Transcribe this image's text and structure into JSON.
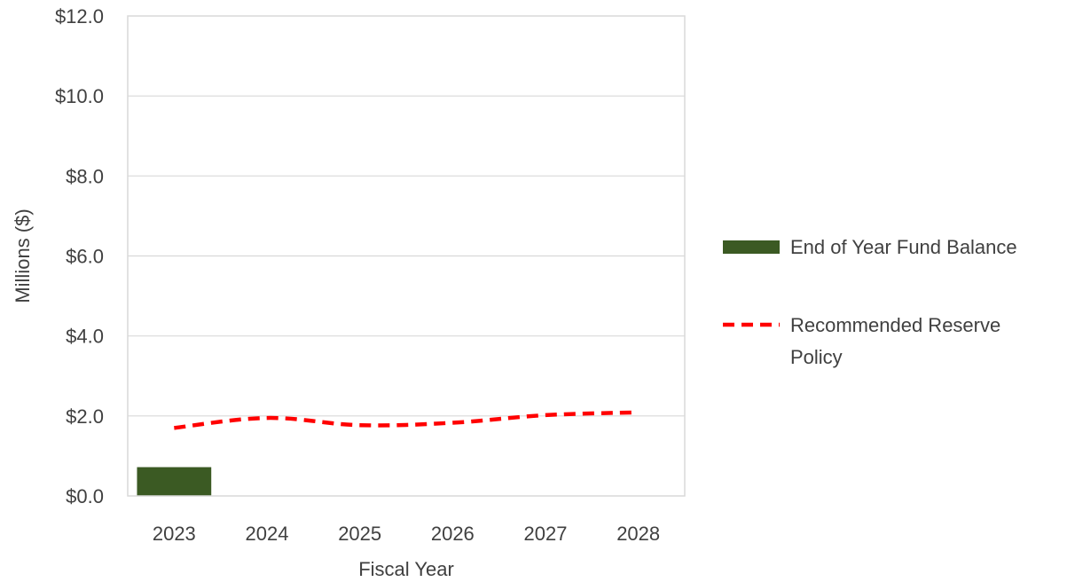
{
  "chart_data": {
    "type": "bar",
    "title": "",
    "xlabel": "Fiscal Year",
    "ylabel": "Millions ($)",
    "categories": [
      "2023",
      "2024",
      "2025",
      "2026",
      "2027",
      "2028"
    ],
    "ylim": [
      0,
      12
    ],
    "yticks": [
      0,
      2,
      4,
      6,
      8,
      10,
      12
    ],
    "ytick_labels": [
      "$0.0",
      "$2.0",
      "$4.0",
      "$6.0",
      "$8.0",
      "$10.0",
      "$12.0"
    ],
    "grid": true,
    "legend_position": "right",
    "series": [
      {
        "name": "End of Year Fund Balance",
        "type": "bar",
        "color": "#3b5a23",
        "values": [
          0.72,
          null,
          null,
          null,
          null,
          null
        ]
      },
      {
        "name": "Recommended Reserve Policy",
        "type": "line",
        "style": "dashed",
        "color": "#ff0000",
        "values": [
          1.7,
          1.95,
          1.77,
          1.83,
          2.02,
          2.09
        ]
      }
    ],
    "legend": [
      {
        "label_lines": [
          "End of Year Fund Balance"
        ],
        "marker": "bar"
      },
      {
        "label_lines": [
          "Recommended Reserve",
          "Policy"
        ],
        "marker": "dashed-line"
      }
    ]
  }
}
